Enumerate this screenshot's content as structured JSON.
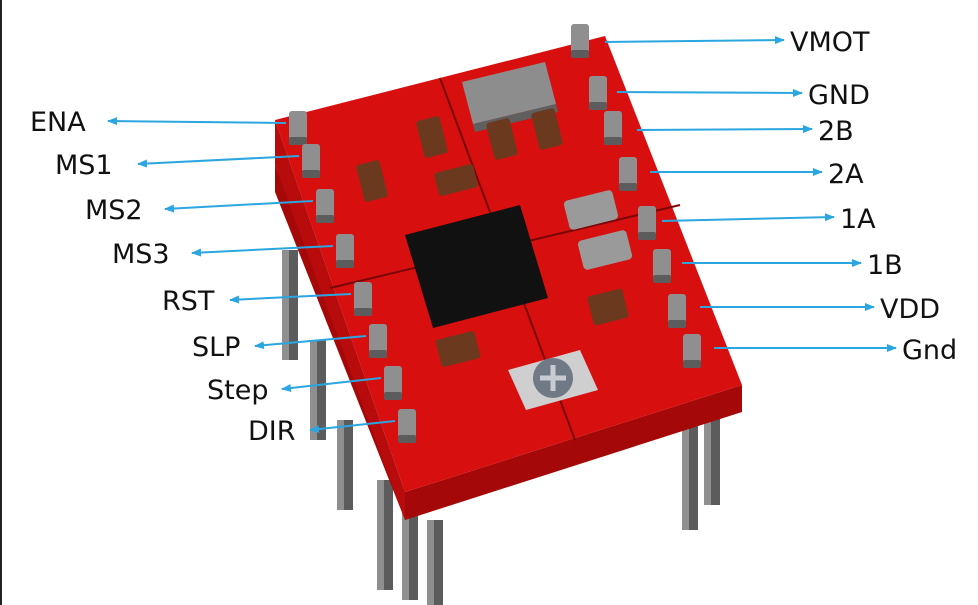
{
  "colors": {
    "board": "#d80f0f",
    "board_side": "#a50808",
    "board_top_shade": "#e02020",
    "seam": "#7a0707",
    "header_pin": "#8f8f8f",
    "header_pin_dark": "#5c5c5c",
    "chip": "#111111",
    "component": "#6b3a1e",
    "component_end": "#9a9a9a",
    "arrow": "#2ba6e0",
    "label": "#111111"
  },
  "diagram": {
    "left_pins": [
      {
        "id": "ena",
        "label": "ENA"
      },
      {
        "id": "ms1",
        "label": "MS1"
      },
      {
        "id": "ms2",
        "label": "MS2"
      },
      {
        "id": "ms3",
        "label": "MS3"
      },
      {
        "id": "rst",
        "label": "RST"
      },
      {
        "id": "slp",
        "label": "SLP"
      },
      {
        "id": "step",
        "label": "Step"
      },
      {
        "id": "dir",
        "label": "DIR"
      }
    ],
    "right_pins": [
      {
        "id": "vmot",
        "label": "VMOT"
      },
      {
        "id": "gnd-top",
        "label": "GND"
      },
      {
        "id": "2b",
        "label": "2B"
      },
      {
        "id": "2a",
        "label": "2A"
      },
      {
        "id": "1a",
        "label": "1A"
      },
      {
        "id": "1b",
        "label": "1B"
      },
      {
        "id": "vdd",
        "label": "VDD"
      },
      {
        "id": "gnd-bottom",
        "label": "Gnd"
      }
    ]
  }
}
